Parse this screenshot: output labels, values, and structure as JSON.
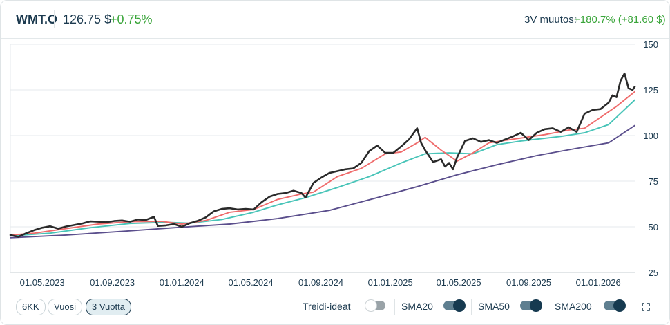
{
  "header": {
    "ticker": "WMT.O",
    "price": "126.75 $",
    "change_pct": "+0.75%",
    "period_change_label": "3V muutos:",
    "period_change_value": "+180.7% (+81.60 $)"
  },
  "footer": {
    "periods": [
      "6KK",
      "Vuosi",
      "3 Vuotta"
    ],
    "active_period": "3 Vuotta",
    "toggles": [
      {
        "label": "Treidi-ideat",
        "on": false
      },
      {
        "label": "SMA20",
        "on": true
      },
      {
        "label": "SMA50",
        "on": true
      },
      {
        "label": "SMA200",
        "on": true
      }
    ],
    "expand_icon": "expand-icon"
  },
  "colors": {
    "price": "#2a2a2a",
    "sma20": "#ef6b6b",
    "sma50": "#48c4b8",
    "sma200": "#5a4e8c",
    "positive": "#3aa53a",
    "text": "#1c3a4f"
  },
  "chart_data": {
    "type": "line",
    "xlabel": "",
    "ylabel": "",
    "x_ticks": [
      "01.05.2023",
      "01.09.2023",
      "01.01.2024",
      "01.05.2024",
      "01.09.2024",
      "01.01.2025",
      "01.05.2025",
      "01.09.2025",
      "01.01.2026"
    ],
    "y_ticks": [
      25,
      50,
      75,
      100,
      125,
      150
    ],
    "ylim": [
      25,
      150
    ],
    "xlim": [
      "2023-03-06",
      "2026-03-06"
    ],
    "grid": "horizontal",
    "axis_side": "right",
    "series": [
      {
        "name": "WMT.O",
        "color_key": "price",
        "points": [
          [
            "2023-03-06",
            45.5
          ],
          [
            "2023-03-20",
            44.5
          ],
          [
            "2023-04-03",
            46.5
          ],
          [
            "2023-04-17",
            48.2
          ],
          [
            "2023-05-01",
            49.5
          ],
          [
            "2023-05-15",
            50.3
          ],
          [
            "2023-05-29",
            49.0
          ],
          [
            "2023-06-12",
            50.2
          ],
          [
            "2023-06-26",
            51.0
          ],
          [
            "2023-07-10",
            51.8
          ],
          [
            "2023-07-24",
            53.0
          ],
          [
            "2023-08-07",
            52.8
          ],
          [
            "2023-08-21",
            52.5
          ],
          [
            "2023-09-04",
            53.2
          ],
          [
            "2023-09-18",
            53.5
          ],
          [
            "2023-10-02",
            52.8
          ],
          [
            "2023-10-16",
            54.0
          ],
          [
            "2023-10-30",
            53.8
          ],
          [
            "2023-11-13",
            55.5
          ],
          [
            "2023-11-20",
            50.5
          ],
          [
            "2023-12-04",
            50.8
          ],
          [
            "2023-12-18",
            51.5
          ],
          [
            "2024-01-01",
            50.0
          ],
          [
            "2024-01-15",
            52.0
          ],
          [
            "2024-01-29",
            53.3
          ],
          [
            "2024-02-12",
            55.2
          ],
          [
            "2024-02-26",
            58.5
          ],
          [
            "2024-03-11",
            59.8
          ],
          [
            "2024-03-25",
            60.2
          ],
          [
            "2024-04-08",
            59.5
          ],
          [
            "2024-04-22",
            59.8
          ],
          [
            "2024-05-06",
            59.5
          ],
          [
            "2024-05-20",
            63.5
          ],
          [
            "2024-06-03",
            66.5
          ],
          [
            "2024-06-17",
            68.0
          ],
          [
            "2024-07-01",
            68.5
          ],
          [
            "2024-07-15",
            69.8
          ],
          [
            "2024-07-29",
            68.5
          ],
          [
            "2024-08-05",
            66.0
          ],
          [
            "2024-08-19",
            74.0
          ],
          [
            "2024-09-02",
            77.0
          ],
          [
            "2024-09-16",
            79.5
          ],
          [
            "2024-09-30",
            80.5
          ],
          [
            "2024-10-14",
            81.5
          ],
          [
            "2024-10-28",
            82.0
          ],
          [
            "2024-11-11",
            85.0
          ],
          [
            "2024-11-25",
            91.5
          ],
          [
            "2024-12-09",
            94.5
          ],
          [
            "2024-12-23",
            90.5
          ],
          [
            "2025-01-06",
            90.5
          ],
          [
            "2025-01-20",
            94.0
          ],
          [
            "2025-02-03",
            98.0
          ],
          [
            "2025-02-17",
            104.0
          ],
          [
            "2025-02-24",
            96.0
          ],
          [
            "2025-03-03",
            92.0
          ],
          [
            "2025-03-17",
            85.5
          ],
          [
            "2025-03-31",
            87.0
          ],
          [
            "2025-04-07",
            83.0
          ],
          [
            "2025-04-14",
            85.0
          ],
          [
            "2025-04-21",
            81.5
          ],
          [
            "2025-04-28",
            88.0
          ],
          [
            "2025-05-12",
            97.0
          ],
          [
            "2025-05-26",
            98.5
          ],
          [
            "2025-06-09",
            96.5
          ],
          [
            "2025-06-23",
            97.5
          ],
          [
            "2025-07-07",
            96.0
          ],
          [
            "2025-07-21",
            97.8
          ],
          [
            "2025-08-04",
            99.5
          ],
          [
            "2025-08-18",
            101.5
          ],
          [
            "2025-09-01",
            97.5
          ],
          [
            "2025-09-15",
            101.5
          ],
          [
            "2025-09-29",
            103.5
          ],
          [
            "2025-10-13",
            104.0
          ],
          [
            "2025-10-27",
            102.0
          ],
          [
            "2025-11-10",
            104.5
          ],
          [
            "2025-11-24",
            102.0
          ],
          [
            "2025-12-08",
            112.0
          ],
          [
            "2025-12-22",
            114.0
          ],
          [
            "2026-01-05",
            114.5
          ],
          [
            "2026-01-19",
            118.0
          ],
          [
            "2026-01-26",
            122.0
          ],
          [
            "2026-02-02",
            121.0
          ],
          [
            "2026-02-09",
            130.0
          ],
          [
            "2026-02-16",
            134.0
          ],
          [
            "2026-02-23",
            126.0
          ],
          [
            "2026-03-02",
            125.0
          ],
          [
            "2026-03-06",
            126.75
          ]
        ]
      },
      {
        "name": "SMA20",
        "color_key": "sma20",
        "points": [
          [
            "2023-03-06",
            45.5
          ],
          [
            "2023-04-17",
            46.5
          ],
          [
            "2023-06-12",
            49.0
          ],
          [
            "2023-08-07",
            51.5
          ],
          [
            "2023-10-02",
            52.8
          ],
          [
            "2023-11-27",
            53.0
          ],
          [
            "2024-01-01",
            51.5
          ],
          [
            "2024-02-12",
            53.5
          ],
          [
            "2024-03-25",
            58.0
          ],
          [
            "2024-05-06",
            59.5
          ],
          [
            "2024-06-17",
            65.0
          ],
          [
            "2024-07-29",
            68.0
          ],
          [
            "2024-08-19",
            69.0
          ],
          [
            "2024-09-30",
            77.5
          ],
          [
            "2024-11-11",
            82.0
          ],
          [
            "2024-12-23",
            90.0
          ],
          [
            "2025-01-20",
            91.0
          ],
          [
            "2025-02-17",
            96.0
          ],
          [
            "2025-03-03",
            99.0
          ],
          [
            "2025-03-31",
            92.0
          ],
          [
            "2025-04-28",
            86.0
          ],
          [
            "2025-05-26",
            90.5
          ],
          [
            "2025-06-23",
            96.0
          ],
          [
            "2025-08-04",
            98.0
          ],
          [
            "2025-09-29",
            100.5
          ],
          [
            "2025-11-10",
            103.0
          ],
          [
            "2025-12-08",
            104.0
          ],
          [
            "2026-01-05",
            110.0
          ],
          [
            "2026-02-02",
            116.0
          ],
          [
            "2026-03-06",
            124.0
          ]
        ]
      },
      {
        "name": "SMA50",
        "color_key": "sma50",
        "points": [
          [
            "2023-03-06",
            45.0
          ],
          [
            "2023-05-15",
            46.5
          ],
          [
            "2023-07-24",
            49.5
          ],
          [
            "2023-10-02",
            51.8
          ],
          [
            "2023-12-04",
            52.5
          ],
          [
            "2024-01-15",
            52.0
          ],
          [
            "2024-03-11",
            54.0
          ],
          [
            "2024-05-06",
            58.0
          ],
          [
            "2024-06-17",
            62.0
          ],
          [
            "2024-08-05",
            66.0
          ],
          [
            "2024-09-30",
            71.5
          ],
          [
            "2024-11-25",
            77.5
          ],
          [
            "2025-01-20",
            85.0
          ],
          [
            "2025-03-03",
            90.0
          ],
          [
            "2025-04-14",
            90.5
          ],
          [
            "2025-05-26",
            90.0
          ],
          [
            "2025-07-07",
            95.0
          ],
          [
            "2025-08-18",
            97.0
          ],
          [
            "2025-10-27",
            99.5
          ],
          [
            "2025-12-08",
            101.5
          ],
          [
            "2026-01-19",
            106.0
          ],
          [
            "2026-03-06",
            119.5
          ]
        ]
      },
      {
        "name": "SMA200",
        "color_key": "sma200",
        "points": [
          [
            "2023-03-06",
            44.0
          ],
          [
            "2023-06-12",
            45.5
          ],
          [
            "2023-09-18",
            47.5
          ],
          [
            "2023-12-18",
            49.5
          ],
          [
            "2024-03-25",
            51.5
          ],
          [
            "2024-06-17",
            54.5
          ],
          [
            "2024-09-16",
            59.0
          ],
          [
            "2024-12-09",
            66.0
          ],
          [
            "2025-02-17",
            72.0
          ],
          [
            "2025-04-28",
            78.5
          ],
          [
            "2025-07-07",
            84.0
          ],
          [
            "2025-09-15",
            89.0
          ],
          [
            "2025-11-24",
            93.0
          ],
          [
            "2026-01-19",
            96.0
          ],
          [
            "2026-03-06",
            105.5
          ]
        ]
      }
    ]
  }
}
